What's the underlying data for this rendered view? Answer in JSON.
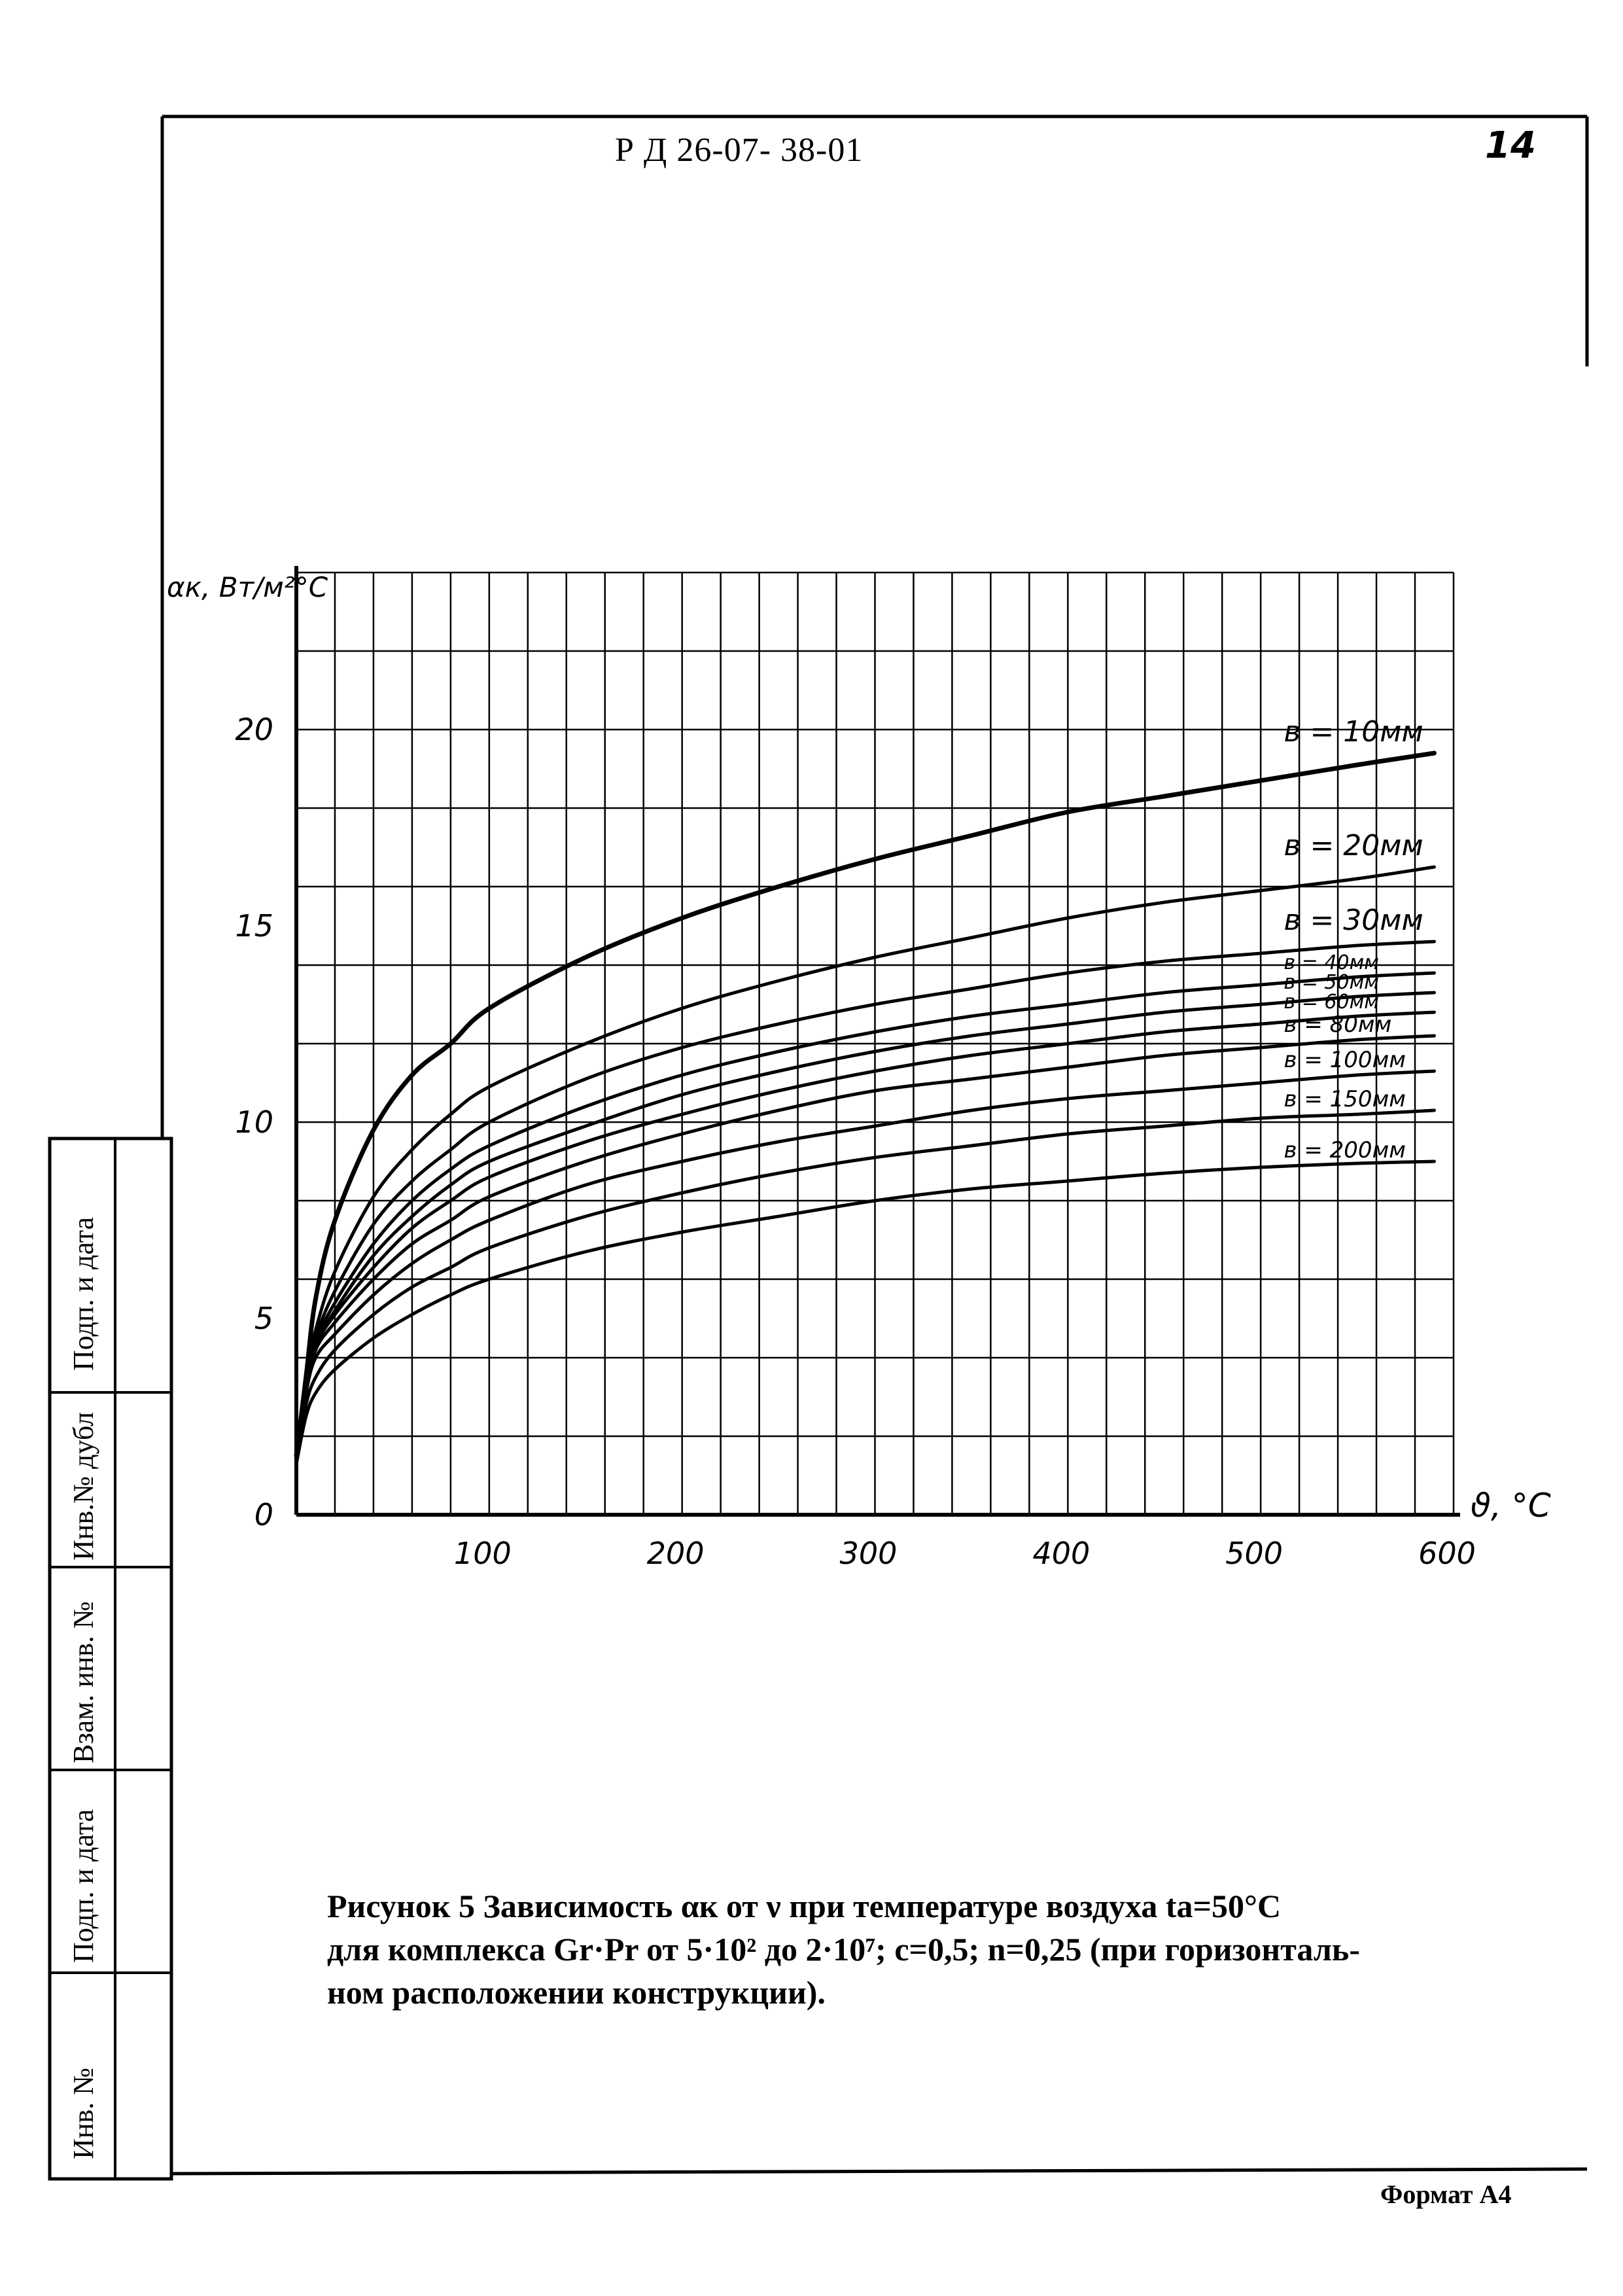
{
  "header": {
    "doc_code": "Р Д 26-07- 38-01",
    "page_number": "14"
  },
  "side_stamp": {
    "labels": [
      "Подп. и дата",
      "Инв.№ дубл",
      "Взам. инв. №",
      "Подп. и дата",
      "Инв. №"
    ]
  },
  "caption": {
    "line1": "Рисунок 5  Зависимость αк от ν при температуре воздуха tа=50°С",
    "line2": "для комплекса Gr·Pr от 5·10² до 2·10⁷; c=0,5; n=0,25 (при горизонталь-",
    "line3": "ном расположении конструкции)."
  },
  "footer": {
    "format_label": "Формат А4"
  },
  "colors": {
    "ink": "#000000",
    "paper": "#ffffff"
  },
  "chart_data": {
    "type": "line",
    "title": "",
    "ylabel": "αк, Вт/м²°С",
    "xlabel": "ϑ, °С",
    "xlim": [
      0,
      600
    ],
    "ylim": [
      0,
      24
    ],
    "x_ticks": [
      100,
      200,
      300,
      400,
      500,
      600
    ],
    "y_ticks": [
      0,
      5,
      10,
      15,
      20
    ],
    "x_tick_labels": [
      "100",
      "200",
      "300",
      "400",
      "500",
      "600"
    ],
    "y_tick_labels": [
      "0",
      "5",
      "10",
      "15",
      "20"
    ],
    "grid": true,
    "x": [
      0,
      5,
      10,
      20,
      40,
      60,
      80,
      100,
      150,
      200,
      250,
      300,
      350,
      400,
      450,
      500,
      550,
      590
    ],
    "series": [
      {
        "name": "в = 10мм",
        "values": [
          1.5,
          3.5,
          5.5,
          7.5,
          9.8,
          11.2,
          12.0,
          12.9,
          14.2,
          15.2,
          16.0,
          16.7,
          17.3,
          17.9,
          18.3,
          18.7,
          19.1,
          19.4
        ]
      },
      {
        "name": "в = 20мм",
        "values": [
          1.5,
          3.5,
          4.7,
          6.2,
          8.1,
          9.3,
          10.2,
          10.9,
          12.0,
          12.9,
          13.6,
          14.2,
          14.7,
          15.2,
          15.6,
          15.9,
          16.2,
          16.5
        ]
      },
      {
        "name": "в = 30мм",
        "values": [
          1.5,
          3.4,
          4.5,
          5.7,
          7.4,
          8.5,
          9.3,
          10.0,
          11.1,
          11.9,
          12.5,
          13.0,
          13.4,
          13.8,
          14.1,
          14.3,
          14.5,
          14.6
        ]
      },
      {
        "name": "в = 40мм",
        "values": [
          1.5,
          3.4,
          4.4,
          5.4,
          6.9,
          8.0,
          8.8,
          9.4,
          10.4,
          11.2,
          11.8,
          12.3,
          12.7,
          13.0,
          13.3,
          13.5,
          13.7,
          13.8
        ]
      },
      {
        "name": "в = 50мм",
        "values": [
          1.5,
          3.3,
          4.3,
          5.2,
          6.6,
          7.6,
          8.4,
          9.0,
          9.9,
          10.7,
          11.3,
          11.8,
          12.2,
          12.5,
          12.8,
          13.0,
          13.2,
          13.3
        ]
      },
      {
        "name": "в = 60мм",
        "values": [
          1.5,
          3.3,
          4.3,
          5.1,
          6.3,
          7.3,
          8.0,
          8.6,
          9.5,
          10.2,
          10.8,
          11.3,
          11.7,
          12.0,
          12.3,
          12.5,
          12.7,
          12.8
        ]
      },
      {
        "name": "в = 80мм",
        "values": [
          1.5,
          3.2,
          4.2,
          4.9,
          6.0,
          6.9,
          7.5,
          8.1,
          9.0,
          9.7,
          10.3,
          10.8,
          11.1,
          11.4,
          11.7,
          11.9,
          12.1,
          12.2
        ]
      },
      {
        "name": "в = 100мм",
        "values": [
          1.5,
          3.1,
          4.0,
          4.6,
          5.6,
          6.4,
          7.0,
          7.5,
          8.4,
          9.0,
          9.5,
          9.9,
          10.3,
          10.6,
          10.8,
          11.0,
          11.2,
          11.3
        ]
      },
      {
        "name": "в = 150мм",
        "values": [
          1.4,
          2.8,
          3.5,
          4.2,
          5.1,
          5.8,
          6.3,
          6.8,
          7.6,
          8.2,
          8.7,
          9.1,
          9.4,
          9.7,
          9.9,
          10.1,
          10.2,
          10.3
        ]
      },
      {
        "name": "в = 200мм",
        "values": [
          1.3,
          2.5,
          3.1,
          3.7,
          4.5,
          5.1,
          5.6,
          6.0,
          6.7,
          7.2,
          7.6,
          8.0,
          8.3,
          8.5,
          8.7,
          8.85,
          8.95,
          9.0
        ]
      }
    ]
  }
}
